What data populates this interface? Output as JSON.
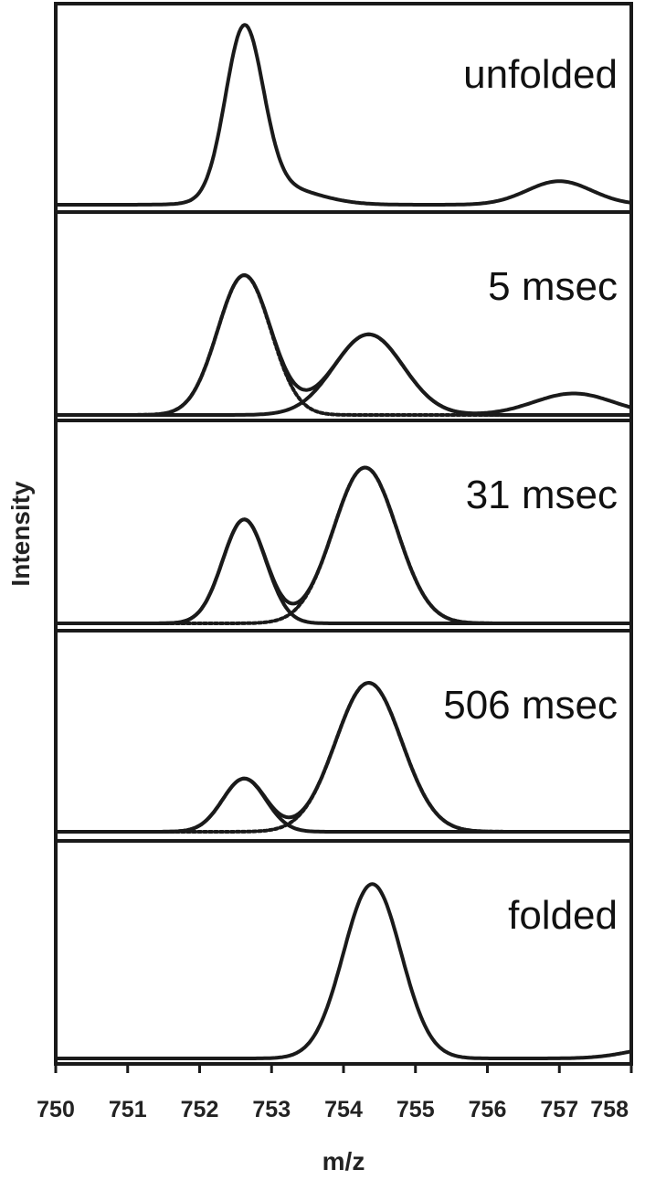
{
  "chart_data": {
    "type": "line",
    "xlabel": "m/z",
    "ylabel": "Intensity",
    "xlim": [
      750,
      758
    ],
    "x_ticks": [
      "750",
      "751",
      "752",
      "753",
      "754",
      "755",
      "756",
      "757",
      "758"
    ],
    "panels": [
      {
        "label": "unfolded",
        "components": [
          {
            "style": "solid",
            "peaks": [
              {
                "center": 752.62,
                "height": 0.92,
                "sigma": 0.26
              },
              {
                "center": 753.05,
                "height": 0.1,
                "sigma": 0.55
              },
              {
                "center": 757.0,
                "height": 0.13,
                "sigma": 0.45
              }
            ]
          }
        ]
      },
      {
        "label": "5 msec",
        "components": [
          {
            "style": "solid",
            "role": "sum",
            "peaks": [
              {
                "center": 752.62,
                "height": 0.78,
                "sigma": 0.37
              },
              {
                "center": 754.35,
                "height": 0.45,
                "sigma": 0.48
              },
              {
                "center": 757.2,
                "height": 0.12,
                "sigma": 0.55
              }
            ]
          },
          {
            "style": "dotted",
            "role": "fit-unfolded",
            "peaks": [
              {
                "center": 752.62,
                "height": 0.78,
                "sigma": 0.37
              }
            ]
          },
          {
            "style": "solid",
            "role": "fit-folded",
            "peaks": [
              {
                "center": 754.35,
                "height": 0.45,
                "sigma": 0.48
              }
            ]
          }
        ]
      },
      {
        "label": "31 msec",
        "components": [
          {
            "style": "solid",
            "role": "sum",
            "peaks": [
              {
                "center": 752.62,
                "height": 0.58,
                "sigma": 0.3
              },
              {
                "center": 754.3,
                "height": 0.87,
                "sigma": 0.44
              }
            ]
          },
          {
            "style": "solid",
            "role": "fit-unfolded",
            "peaks": [
              {
                "center": 752.62,
                "height": 0.58,
                "sigma": 0.3
              }
            ]
          },
          {
            "style": "dotted",
            "role": "fit-folded",
            "peaks": [
              {
                "center": 754.3,
                "height": 0.87,
                "sigma": 0.44
              }
            ]
          }
        ]
      },
      {
        "label": "506 msec",
        "components": [
          {
            "style": "solid",
            "role": "sum",
            "peaks": [
              {
                "center": 752.62,
                "height": 0.3,
                "sigma": 0.3
              },
              {
                "center": 754.35,
                "height": 0.84,
                "sigma": 0.46
              }
            ]
          },
          {
            "style": "solid",
            "role": "fit-unfolded",
            "peaks": [
              {
                "center": 752.62,
                "height": 0.3,
                "sigma": 0.3
              }
            ]
          },
          {
            "style": "dotted",
            "role": "fit-folded",
            "peaks": [
              {
                "center": 754.35,
                "height": 0.84,
                "sigma": 0.46
              }
            ]
          }
        ]
      },
      {
        "label": "folded",
        "components": [
          {
            "style": "solid",
            "peaks": [
              {
                "center": 754.4,
                "height": 0.9,
                "sigma": 0.4
              },
              {
                "center": 758.5,
                "height": 0.06,
                "sigma": 0.5
              }
            ]
          }
        ]
      }
    ]
  }
}
